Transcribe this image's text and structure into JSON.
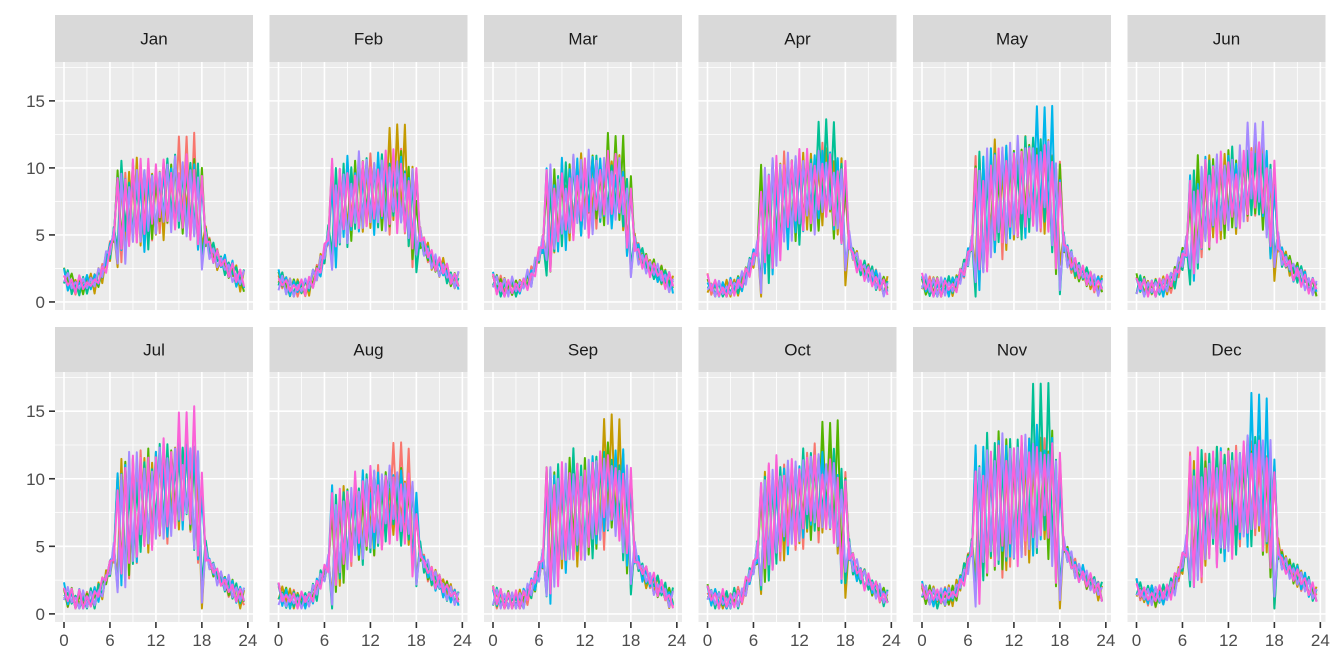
{
  "chart_data": {
    "type": "line",
    "layout": "facet grid 2 rows x 6 columns",
    "xlim": [
      0,
      23.5
    ],
    "ylim": [
      0,
      17.5
    ],
    "x_ticks": [
      "0",
      "6",
      "12",
      "18",
      "24"
    ],
    "y_ticks": [
      "0",
      "5",
      "10",
      "15"
    ],
    "x_tick_values": [
      0,
      6,
      12,
      18,
      24
    ],
    "y_tick_values": [
      0,
      5,
      10,
      15
    ],
    "grid": true,
    "legend": "none",
    "series_colors": [
      "#F8766D",
      "#C49A00",
      "#53B400",
      "#00C094",
      "#00B6EB",
      "#A58AFF",
      "#FB61D7"
    ],
    "facets": [
      {
        "label": "Jan",
        "peak": 12.8,
        "hourly_mean": [
          1.8,
          1.3,
          1.2,
          1.3,
          1.4,
          2.2,
          3.8,
          6.5,
          6.8,
          7.0,
          7.3,
          7.5,
          7.6,
          7.7,
          7.8,
          7.8,
          7.9,
          7.5,
          6.0,
          4.0,
          3.2,
          2.8,
          2.3,
          1.6
        ]
      },
      {
        "label": "Feb",
        "peak": 13.3,
        "hourly_mean": [
          1.6,
          1.3,
          1.1,
          1.1,
          1.3,
          2.0,
          3.5,
          6.3,
          7.2,
          7.6,
          7.8,
          8.0,
          8.0,
          8.1,
          8.1,
          8.2,
          8.1,
          7.4,
          5.6,
          4.0,
          3.2,
          2.7,
          2.2,
          1.5
        ]
      },
      {
        "label": "Mar",
        "peak": 12.8,
        "hourly_mean": [
          1.5,
          1.2,
          1.1,
          1.1,
          1.3,
          1.9,
          3.4,
          5.6,
          6.6,
          7.2,
          7.5,
          7.7,
          7.9,
          8.0,
          8.1,
          8.3,
          8.5,
          7.8,
          5.6,
          3.6,
          2.8,
          2.4,
          2.0,
          1.4
        ]
      },
      {
        "label": "Apr",
        "peak": 13.8,
        "hourly_mean": [
          1.3,
          1.0,
          0.9,
          1.0,
          1.2,
          1.8,
          3.1,
          5.0,
          6.2,
          6.8,
          7.3,
          7.6,
          7.8,
          8.1,
          8.4,
          8.7,
          8.8,
          7.9,
          5.6,
          3.4,
          2.6,
          2.1,
          1.7,
          1.2
        ]
      },
      {
        "label": "May",
        "peak": 15.0,
        "hourly_mean": [
          1.4,
          1.1,
          1.0,
          1.0,
          1.2,
          1.9,
          3.3,
          5.3,
          6.6,
          7.2,
          7.6,
          7.8,
          8.0,
          8.2,
          8.5,
          8.8,
          8.9,
          7.9,
          5.6,
          3.4,
          2.6,
          2.1,
          1.7,
          1.2
        ]
      },
      {
        "label": "Jun",
        "peak": 13.8,
        "hourly_mean": [
          1.4,
          1.1,
          1.0,
          1.0,
          1.2,
          1.8,
          3.2,
          5.2,
          6.5,
          7.1,
          7.6,
          7.9,
          8.1,
          8.3,
          8.6,
          8.9,
          9.0,
          8.0,
          5.7,
          3.4,
          2.6,
          2.1,
          1.7,
          1.2
        ]
      },
      {
        "label": "Jul",
        "peak": 15.4,
        "hourly_mean": [
          1.5,
          1.1,
          1.0,
          1.0,
          1.2,
          1.9,
          3.4,
          5.6,
          6.8,
          7.4,
          7.9,
          8.2,
          8.5,
          8.8,
          9.2,
          9.6,
          9.8,
          8.6,
          5.9,
          3.6,
          2.8,
          2.3,
          1.8,
          1.2
        ]
      },
      {
        "label": "Aug",
        "peak": 12.7,
        "hourly_mean": [
          1.5,
          1.1,
          1.0,
          1.0,
          1.2,
          1.8,
          3.0,
          4.6,
          5.9,
          6.5,
          6.9,
          7.2,
          7.4,
          7.6,
          7.9,
          8.1,
          8.2,
          7.6,
          5.6,
          3.6,
          2.8,
          2.3,
          1.8,
          1.2
        ]
      },
      {
        "label": "Sep",
        "peak": 14.9,
        "hourly_mean": [
          1.3,
          1.0,
          0.9,
          0.9,
          1.1,
          1.8,
          3.2,
          5.2,
          6.3,
          6.9,
          7.3,
          7.6,
          7.9,
          8.2,
          8.6,
          9.0,
          9.1,
          8.0,
          5.6,
          3.5,
          2.7,
          2.2,
          1.8,
          1.2
        ]
      },
      {
        "label": "Oct",
        "peak": 14.5,
        "hourly_mean": [
          1.4,
          1.1,
          1.0,
          1.0,
          1.2,
          1.9,
          3.4,
          5.7,
          6.8,
          7.4,
          7.9,
          8.3,
          8.5,
          8.7,
          8.9,
          9.0,
          9.0,
          8.0,
          5.8,
          3.7,
          2.8,
          2.3,
          1.9,
          1.3
        ]
      },
      {
        "label": "Nov",
        "peak": 17.2,
        "hourly_mean": [
          1.7,
          1.3,
          1.2,
          1.2,
          1.4,
          2.1,
          3.7,
          6.4,
          7.3,
          7.7,
          7.9,
          8.1,
          8.3,
          8.5,
          8.7,
          9.1,
          9.4,
          8.4,
          6.0,
          4.2,
          3.4,
          2.9,
          2.4,
          1.6
        ]
      },
      {
        "label": "Dec",
        "peak": 16.4,
        "hourly_mean": [
          1.8,
          1.4,
          1.3,
          1.3,
          1.5,
          2.2,
          3.8,
          6.3,
          7.4,
          7.9,
          8.3,
          8.5,
          8.7,
          8.8,
          9.0,
          9.3,
          9.5,
          8.4,
          5.8,
          3.9,
          3.2,
          2.8,
          2.3,
          1.6
        ]
      }
    ]
  }
}
